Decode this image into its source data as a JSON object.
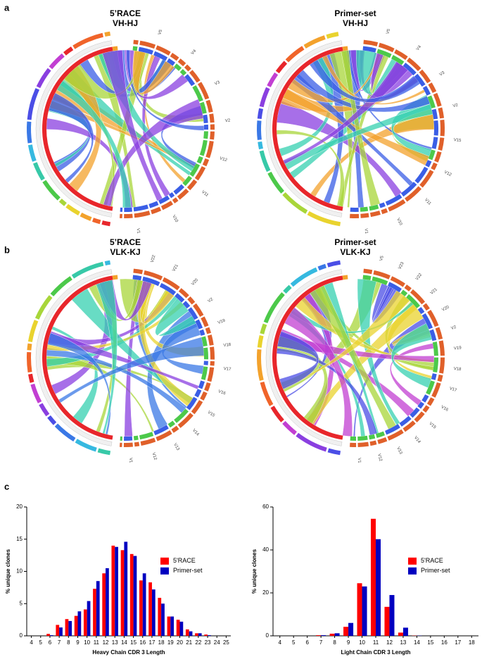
{
  "panels": {
    "a": "a",
    "b": "b",
    "c": "c"
  },
  "chords": [
    {
      "title": "5’RACE",
      "subtitle": "VH-HJ",
      "labels": [
        "V5",
        "V4",
        "V3",
        "V2",
        "V12",
        "V11",
        "V10",
        "V1"
      ]
    },
    {
      "title": "Primer-set",
      "subtitle": "VH-HJ",
      "labels": [
        "V5",
        "V4",
        "V3",
        "V2",
        "V15",
        "V12",
        "V11",
        "V10",
        "V1"
      ]
    },
    {
      "title": "5’RACE",
      "subtitle": "VLK-KJ",
      "labels": [
        "V22",
        "V21",
        "V20",
        "V2",
        "V19",
        "V18",
        "V17",
        "V16",
        "V15",
        "V14",
        "V13",
        "V12",
        "V1"
      ]
    },
    {
      "title": "Primer-set",
      "subtitle": "VLK-KJ",
      "labels": [
        "V5",
        "V23",
        "V22",
        "V21",
        "V20",
        "V2",
        "V19",
        "V18",
        "V17",
        "V16",
        "V15",
        "V14",
        "V13",
        "V12",
        "V1"
      ]
    }
  ],
  "chart_data": [
    {
      "type": "bar",
      "xlabel": "Heavy Chain CDR 3 Length",
      "ylabel": "% unique clones",
      "categories": [
        "4",
        "5",
        "6",
        "7",
        "8",
        "9",
        "10",
        "11",
        "12",
        "13",
        "14",
        "15",
        "16",
        "17",
        "18",
        "19",
        "20",
        "21",
        "22",
        "23",
        "24",
        "25"
      ],
      "series": [
        {
          "name": "5'RACE",
          "color": "#ff0000",
          "values": [
            0,
            0,
            0.3,
            1.7,
            2.6,
            3.1,
            4.1,
            7.3,
            9.7,
            14.0,
            13.3,
            12.7,
            8.6,
            8.3,
            5.9,
            3.0,
            2.5,
            1.0,
            0.4,
            0.2,
            0,
            0
          ]
        },
        {
          "name": "Primer-set",
          "color": "#0000c0",
          "values": [
            0,
            0,
            0.1,
            1.3,
            2.3,
            3.8,
            5.4,
            8.5,
            10.5,
            13.8,
            14.6,
            12.4,
            9.7,
            7.2,
            5.0,
            3.0,
            2.2,
            0.7,
            0.4,
            0.1,
            0,
            0
          ]
        }
      ],
      "ylim": [
        0,
        20
      ],
      "yticks": [
        0,
        5,
        10,
        15,
        20
      ],
      "legend": "right"
    },
    {
      "type": "bar",
      "xlabel": "Light Chain CDR 3 Length",
      "ylabel": "% unique clones",
      "categories": [
        "4",
        "5",
        "6",
        "7",
        "8",
        "9",
        "10",
        "11",
        "12",
        "13",
        "14",
        "15",
        "16",
        "17",
        "18"
      ],
      "series": [
        {
          "name": "5'RACE",
          "color": "#ff0000",
          "values": [
            0,
            0,
            0,
            0.3,
            1.0,
            4.2,
            24.5,
            54.5,
            13.5,
            1.5,
            0.1,
            0,
            0,
            0,
            0
          ]
        },
        {
          "name": "Primer-set",
          "color": "#0000c0",
          "values": [
            0,
            0,
            0,
            0.3,
            1.2,
            6.0,
            23.0,
            45.0,
            19.0,
            3.8,
            0.1,
            0,
            0,
            0,
            0
          ]
        }
      ],
      "ylim": [
        0,
        60
      ],
      "yticks": [
        0,
        20,
        40,
        60
      ],
      "legend": "right"
    }
  ]
}
